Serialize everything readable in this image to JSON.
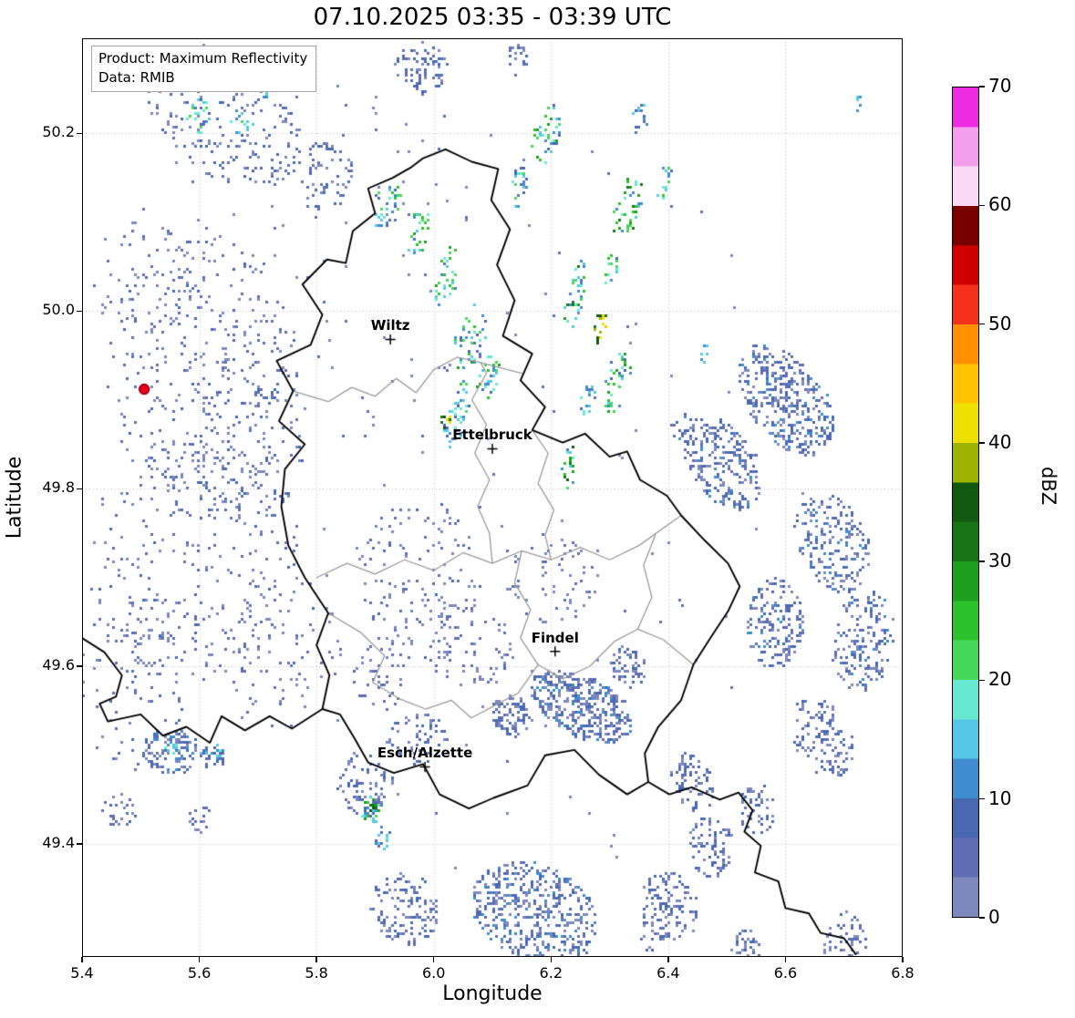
{
  "figure": {
    "title": "07.10.2025 03:35 - 03:39 UTC",
    "background": "#ffffff"
  },
  "info_box": {
    "line1": "Product: Maximum Reflectivity",
    "line2": "Data: RMIB"
  },
  "axes": {
    "xlabel": "Longitude",
    "ylabel": "Latitude",
    "xlim": [
      5.4,
      6.8
    ],
    "ylim": [
      49.273,
      50.307
    ],
    "xticks": [
      {
        "v": 5.4,
        "label": "5.4"
      },
      {
        "v": 5.6,
        "label": "5.6"
      },
      {
        "v": 5.8,
        "label": "5.8"
      },
      {
        "v": 6.0,
        "label": "6.0"
      },
      {
        "v": 6.2,
        "label": "6.2"
      },
      {
        "v": 6.4,
        "label": "6.4"
      },
      {
        "v": 6.6,
        "label": "6.6"
      },
      {
        "v": 6.8,
        "label": "6.8"
      }
    ],
    "yticks": [
      {
        "v": 49.4,
        "label": "49.4"
      },
      {
        "v": 49.6,
        "label": "49.6"
      },
      {
        "v": 49.8,
        "label": "49.8"
      },
      {
        "v": 50.0,
        "label": "50.0"
      },
      {
        "v": 50.2,
        "label": "50.2"
      }
    ],
    "grid_color": "#b8b8b8"
  },
  "colorbar": {
    "label": "dBZ",
    "min": 0,
    "max": 70,
    "ticks": [
      {
        "v": 0,
        "label": "0"
      },
      {
        "v": 10,
        "label": "10"
      },
      {
        "v": 20,
        "label": "20"
      },
      {
        "v": 30,
        "label": "30"
      },
      {
        "v": 40,
        "label": "40"
      },
      {
        "v": 50,
        "label": "50"
      },
      {
        "v": 60,
        "label": "60"
      },
      {
        "v": 70,
        "label": "70"
      }
    ],
    "palette": [
      {
        "t": 0.0,
        "c": "#7d88be"
      },
      {
        "t": 3.33,
        "c": "#5f6eb4"
      },
      {
        "t": 6.67,
        "c": "#4868b2"
      },
      {
        "t": 10.0,
        "c": "#3f8cd0"
      },
      {
        "t": 13.33,
        "c": "#55c8e8"
      },
      {
        "t": 16.67,
        "c": "#67e8d0"
      },
      {
        "t": 20.0,
        "c": "#46d858"
      },
      {
        "t": 23.33,
        "c": "#2cc22c"
      },
      {
        "t": 26.67,
        "c": "#1da01d"
      },
      {
        "t": 30.0,
        "c": "#167416"
      },
      {
        "t": 33.33,
        "c": "#115811"
      },
      {
        "t": 36.67,
        "c": "#9cb400"
      },
      {
        "t": 40.0,
        "c": "#eee000"
      },
      {
        "t": 43.33,
        "c": "#ffc300"
      },
      {
        "t": 46.67,
        "c": "#ff9000"
      },
      {
        "t": 50.0,
        "c": "#f5311c"
      },
      {
        "t": 53.33,
        "c": "#d10000"
      },
      {
        "t": 56.67,
        "c": "#7a0000"
      },
      {
        "t": 60.0,
        "c": "#fbdaf8"
      },
      {
        "t": 63.33,
        "c": "#f49eee"
      },
      {
        "t": 66.67,
        "c": "#ed2ae2"
      }
    ]
  },
  "cities": [
    {
      "name": "Wiltz",
      "lon": 5.926,
      "lat": 49.968
    },
    {
      "name": "Ettelbruck",
      "lon": 6.1,
      "lat": 49.845
    },
    {
      "name": "Findel",
      "lon": 6.207,
      "lat": 49.617
    },
    {
      "name": "Esch/Alzette",
      "lon": 5.985,
      "lat": 49.487
    }
  ],
  "radar_site": {
    "lon": 5.506,
    "lat": 49.912,
    "fill": "#e8001e",
    "edge": "#8b0000",
    "radius": 5.5
  },
  "borders": {
    "black_color": "#000000",
    "gray_color": "#9a9a9a",
    "black_polylines": [
      [
        [
          6.02,
          50.182
        ],
        [
          6.065,
          50.168
        ],
        [
          6.11,
          50.16
        ],
        [
          6.098,
          50.125
        ],
        [
          6.13,
          50.092
        ],
        [
          6.108,
          50.052
        ],
        [
          6.138,
          50.012
        ],
        [
          6.118,
          49.972
        ],
        [
          6.168,
          49.952
        ],
        [
          6.148,
          49.922
        ],
        [
          6.19,
          49.892
        ],
        [
          6.168,
          49.866
        ],
        [
          6.22,
          49.852
        ],
        [
          6.258,
          49.862
        ],
        [
          6.3,
          49.836
        ],
        [
          6.33,
          49.842
        ],
        [
          6.352,
          49.81
        ],
        [
          6.398,
          49.792
        ],
        [
          6.422,
          49.77
        ],
        [
          6.462,
          49.742
        ],
        [
          6.502,
          49.716
        ],
        [
          6.522,
          49.69
        ],
        [
          6.502,
          49.662
        ],
        [
          6.472,
          49.632
        ],
        [
          6.443,
          49.602
        ],
        [
          6.422,
          49.562
        ],
        [
          6.383,
          49.532
        ],
        [
          6.36,
          49.502
        ],
        [
          6.366,
          49.47
        ],
        [
          6.33,
          49.456
        ],
        [
          6.282,
          49.478
        ],
        [
          6.24,
          49.506
        ],
        [
          6.19,
          49.5
        ],
        [
          6.16,
          49.466
        ],
        [
          6.102,
          49.452
        ],
        [
          6.06,
          49.44
        ],
        [
          6.01,
          49.456
        ],
        [
          5.982,
          49.49
        ],
        [
          5.932,
          49.48
        ],
        [
          5.888,
          49.492
        ],
        [
          5.864,
          49.52
        ],
        [
          5.84,
          49.546
        ],
        [
          5.81,
          49.552
        ],
        [
          5.822,
          49.59
        ],
        [
          5.8,
          49.624
        ],
        [
          5.82,
          49.66
        ],
        [
          5.78,
          49.7
        ],
        [
          5.752,
          49.736
        ],
        [
          5.74,
          49.78
        ],
        [
          5.746,
          49.822
        ],
        [
          5.78,
          49.85
        ],
        [
          5.736,
          49.876
        ],
        [
          5.76,
          49.91
        ],
        [
          5.732,
          49.944
        ],
        [
          5.79,
          49.962
        ],
        [
          5.81,
          49.996
        ],
        [
          5.776,
          50.03
        ],
        [
          5.818,
          50.058
        ],
        [
          5.85,
          50.054
        ],
        [
          5.862,
          50.09
        ],
        [
          5.9,
          50.11
        ],
        [
          5.888,
          50.138
        ],
        [
          5.93,
          50.15
        ],
        [
          5.962,
          50.162
        ],
        [
          5.982,
          50.172
        ],
        [
          6.02,
          50.182
        ]
      ],
      [
        [
          5.4,
          49.632
        ],
        [
          5.438,
          49.616
        ],
        [
          5.468,
          49.59
        ],
        [
          5.458,
          49.566
        ],
        [
          5.43,
          49.558
        ],
        [
          5.444,
          49.538
        ],
        [
          5.5,
          49.546
        ],
        [
          5.538,
          49.522
        ],
        [
          5.578,
          49.532
        ],
        [
          5.618,
          49.514
        ],
        [
          5.638,
          49.544
        ],
        [
          5.678,
          49.528
        ],
        [
          5.72,
          49.544
        ],
        [
          5.758,
          49.53
        ],
        [
          5.81,
          49.552
        ]
      ],
      [
        [
          6.366,
          49.47
        ],
        [
          6.402,
          49.456
        ],
        [
          6.44,
          49.464
        ],
        [
          6.488,
          49.45
        ],
        [
          6.52,
          49.458
        ],
        [
          6.544,
          49.438
        ],
        [
          6.53,
          49.414
        ],
        [
          6.558,
          49.398
        ],
        [
          6.548,
          49.368
        ],
        [
          6.588,
          49.358
        ],
        [
          6.6,
          49.328
        ],
        [
          6.64,
          49.322
        ],
        [
          6.66,
          49.3
        ],
        [
          6.7,
          49.294
        ],
        [
          6.72,
          49.276
        ]
      ]
    ],
    "gray_polylines": [
      [
        [
          5.76,
          49.91
        ],
        [
          5.82,
          49.898
        ],
        [
          5.86,
          49.914
        ],
        [
          5.9,
          49.904
        ],
        [
          5.936,
          49.924
        ],
        [
          5.97,
          49.908
        ],
        [
          6.0,
          49.934
        ],
        [
          6.04,
          49.948
        ],
        [
          6.08,
          49.942
        ],
        [
          6.15,
          49.93
        ]
      ],
      [
        [
          5.8,
          49.7
        ],
        [
          5.852,
          49.716
        ],
        [
          5.9,
          49.704
        ],
        [
          5.95,
          49.72
        ],
        [
          6.0,
          49.708
        ],
        [
          6.05,
          49.728
        ],
        [
          6.1,
          49.716
        ],
        [
          6.15,
          49.73
        ],
        [
          6.2,
          49.72
        ],
        [
          6.25,
          49.734
        ],
        [
          6.3,
          49.72
        ],
        [
          6.35,
          49.736
        ],
        [
          6.422,
          49.77
        ]
      ],
      [
        [
          6.08,
          49.942
        ],
        [
          6.09,
          49.93
        ],
        [
          6.065,
          49.9
        ],
        [
          6.09,
          49.872
        ],
        [
          6.07,
          49.84
        ],
        [
          6.095,
          49.81
        ],
        [
          6.075,
          49.78
        ],
        [
          6.095,
          49.75
        ],
        [
          6.1,
          49.716
        ]
      ],
      [
        [
          6.168,
          49.866
        ],
        [
          6.195,
          49.84
        ],
        [
          6.178,
          49.806
        ],
        [
          6.205,
          49.776
        ],
        [
          6.19,
          49.748
        ],
        [
          6.2,
          49.72
        ]
      ],
      [
        [
          6.15,
          49.73
        ],
        [
          6.138,
          49.694
        ],
        [
          6.165,
          49.664
        ],
        [
          6.148,
          49.632
        ],
        [
          6.178,
          49.602
        ],
        [
          6.22,
          49.586
        ],
        [
          6.266,
          49.6
        ],
        [
          6.308,
          49.628
        ],
        [
          6.348,
          49.642
        ],
        [
          6.392,
          49.63
        ],
        [
          6.443,
          49.602
        ]
      ],
      [
        [
          5.82,
          49.66
        ],
        [
          5.876,
          49.638
        ],
        [
          5.916,
          49.612
        ],
        [
          5.896,
          49.582
        ],
        [
          5.94,
          49.564
        ],
        [
          5.986,
          49.552
        ],
        [
          6.03,
          49.562
        ],
        [
          6.064,
          49.542
        ],
        [
          6.104,
          49.556
        ],
        [
          6.144,
          49.57
        ],
        [
          6.178,
          49.602
        ]
      ],
      [
        [
          6.348,
          49.642
        ],
        [
          6.372,
          49.678
        ],
        [
          6.358,
          49.714
        ],
        [
          6.378,
          49.748
        ]
      ]
    ]
  },
  "echo_cluster_fields": [
    "lon",
    "lat",
    "rx_deg",
    "ry_deg",
    "rot_deg",
    "count",
    "dbz_min",
    "dbz_max"
  ],
  "echo_clusters": [
    [
      6.1,
      49.8,
      0.55,
      0.45,
      0,
      130,
      0,
      5
    ],
    [
      5.78,
      50.05,
      0.3,
      0.22,
      0,
      90,
      0,
      6
    ],
    [
      5.6,
      49.93,
      0.17,
      0.16,
      0,
      300,
      0,
      8
    ],
    [
      5.59,
      49.72,
      0.18,
      0.14,
      0,
      260,
      0,
      8
    ],
    [
      5.48,
      49.58,
      0.09,
      0.1,
      0,
      90,
      0,
      7
    ],
    [
      5.74,
      49.62,
      0.1,
      0.09,
      0,
      90,
      0,
      7
    ],
    [
      5.5,
      50.04,
      0.09,
      0.07,
      0,
      70,
      0,
      6
    ],
    [
      5.68,
      49.86,
      0.1,
      0.1,
      0,
      120,
      0,
      8
    ],
    [
      5.64,
      50.22,
      0.14,
      0.07,
      -20,
      240,
      0,
      10
    ],
    [
      5.6,
      50.22,
      0.025,
      0.02,
      0,
      20,
      10,
      24
    ],
    [
      5.67,
      50.215,
      0.02,
      0.015,
      0,
      14,
      10,
      22
    ],
    [
      5.71,
      50.25,
      0.012,
      0.01,
      0,
      8,
      10,
      16
    ],
    [
      5.82,
      50.15,
      0.05,
      0.04,
      -30,
      60,
      0,
      10
    ],
    [
      5.975,
      50.275,
      0.045,
      0.03,
      0,
      80,
      0,
      10
    ],
    [
      6.14,
      50.285,
      0.02,
      0.02,
      0,
      20,
      0,
      8
    ],
    [
      5.92,
      50.12,
      0.02,
      0.03,
      -25,
      35,
      5,
      28
    ],
    [
      5.97,
      50.09,
      0.018,
      0.03,
      -25,
      30,
      8,
      30
    ],
    [
      6.02,
      50.04,
      0.015,
      0.035,
      -20,
      30,
      8,
      30
    ],
    [
      6.06,
      49.97,
      0.025,
      0.04,
      -20,
      45,
      5,
      28
    ],
    [
      6.09,
      49.93,
      0.018,
      0.03,
      -15,
      30,
      8,
      32
    ],
    [
      6.045,
      49.9,
      0.015,
      0.025,
      0,
      22,
      8,
      25
    ],
    [
      6.018,
      49.876,
      0.008,
      0.012,
      0,
      10,
      30,
      46
    ],
    [
      6.03,
      49.868,
      0.02,
      0.02,
      0,
      18,
      5,
      20
    ],
    [
      6.19,
      50.2,
      0.02,
      0.04,
      -25,
      40,
      8,
      30
    ],
    [
      6.14,
      50.14,
      0.015,
      0.025,
      -25,
      22,
      5,
      22
    ],
    [
      6.33,
      50.12,
      0.02,
      0.04,
      -25,
      40,
      10,
      32
    ],
    [
      6.39,
      50.145,
      0.012,
      0.02,
      -25,
      14,
      8,
      25
    ],
    [
      6.24,
      50.02,
      0.015,
      0.04,
      -20,
      35,
      10,
      34
    ],
    [
      6.28,
      49.985,
      0.01,
      0.022,
      -15,
      16,
      32,
      45
    ],
    [
      6.3,
      50.05,
      0.012,
      0.02,
      -20,
      14,
      8,
      24
    ],
    [
      6.31,
      49.92,
      0.018,
      0.04,
      -25,
      40,
      8,
      30
    ],
    [
      6.26,
      49.9,
      0.012,
      0.02,
      -25,
      16,
      5,
      20
    ],
    [
      6.23,
      49.825,
      0.012,
      0.025,
      -15,
      20,
      12,
      38
    ],
    [
      6.35,
      50.22,
      0.015,
      0.02,
      -25,
      15,
      5,
      15
    ],
    [
      6.46,
      49.955,
      0.006,
      0.012,
      0,
      7,
      10,
      16
    ],
    [
      6.72,
      50.235,
      0.006,
      0.01,
      0,
      6,
      10,
      15
    ],
    [
      6.6,
      49.9,
      0.09,
      0.05,
      -30,
      380,
      0,
      12
    ],
    [
      6.49,
      49.83,
      0.07,
      0.045,
      -30,
      240,
      0,
      11
    ],
    [
      6.68,
      49.74,
      0.07,
      0.05,
      -30,
      200,
      0,
      11
    ],
    [
      6.58,
      49.65,
      0.05,
      0.05,
      -35,
      160,
      0,
      11
    ],
    [
      6.73,
      49.63,
      0.05,
      0.06,
      -35,
      170,
      0,
      11
    ],
    [
      6.66,
      49.52,
      0.06,
      0.04,
      -35,
      130,
      0,
      10
    ],
    [
      6.44,
      49.47,
      0.04,
      0.03,
      -35,
      80,
      0,
      10
    ],
    [
      6.55,
      49.44,
      0.03,
      0.03,
      -35,
      50,
      0,
      9
    ],
    [
      6.25,
      49.557,
      0.09,
      0.035,
      -15,
      380,
      0,
      12
    ],
    [
      6.13,
      49.545,
      0.035,
      0.025,
      -15,
      90,
      0,
      10
    ],
    [
      6.33,
      49.6,
      0.03,
      0.025,
      -20,
      60,
      0,
      10
    ],
    [
      6.17,
      49.325,
      0.11,
      0.055,
      -10,
      480,
      0,
      12
    ],
    [
      5.95,
      49.33,
      0.06,
      0.04,
      -10,
      130,
      0,
      9
    ],
    [
      6.4,
      49.33,
      0.05,
      0.04,
      -15,
      110,
      0,
      10
    ],
    [
      6.47,
      49.4,
      0.04,
      0.035,
      -25,
      80,
      0,
      9
    ],
    [
      6.7,
      49.29,
      0.04,
      0.035,
      -25,
      70,
      0,
      9
    ],
    [
      6.53,
      49.285,
      0.025,
      0.02,
      -20,
      40,
      0,
      8
    ],
    [
      5.55,
      49.505,
      0.05,
      0.025,
      0,
      110,
      0,
      12
    ],
    [
      5.552,
      49.51,
      0.012,
      0.008,
      0,
      12,
      12,
      20
    ],
    [
      5.62,
      49.5,
      0.022,
      0.015,
      0,
      35,
      4,
      16
    ],
    [
      5.632,
      49.502,
      0.008,
      0.006,
      0,
      8,
      12,
      20
    ],
    [
      5.46,
      49.44,
      0.03,
      0.02,
      0,
      30,
      0,
      8
    ],
    [
      5.6,
      49.43,
      0.02,
      0.015,
      0,
      18,
      0,
      8
    ],
    [
      5.89,
      49.44,
      0.016,
      0.016,
      0,
      28,
      8,
      30
    ],
    [
      5.895,
      49.445,
      0.006,
      0.006,
      0,
      8,
      26,
      38
    ],
    [
      5.91,
      49.41,
      0.012,
      0.015,
      0,
      15,
      4,
      18
    ],
    [
      5.88,
      49.47,
      0.05,
      0.035,
      0,
      70,
      0,
      9
    ],
    [
      5.97,
      49.52,
      0.05,
      0.03,
      0,
      60,
      0,
      9
    ],
    [
      5.97,
      49.7,
      0.11,
      0.09,
      0,
      140,
      0,
      7
    ],
    [
      6.06,
      49.62,
      0.07,
      0.05,
      0,
      70,
      0,
      7
    ],
    [
      5.91,
      49.59,
      0.05,
      0.04,
      0,
      45,
      0,
      7
    ],
    [
      6.42,
      49.87,
      0.018,
      0.018,
      0,
      14,
      3,
      12
    ],
    [
      6.37,
      49.3,
      0.02,
      0.02,
      0,
      20,
      0,
      8
    ],
    [
      6.2,
      49.7,
      0.08,
      0.05,
      0,
      60,
      0,
      6
    ]
  ]
}
